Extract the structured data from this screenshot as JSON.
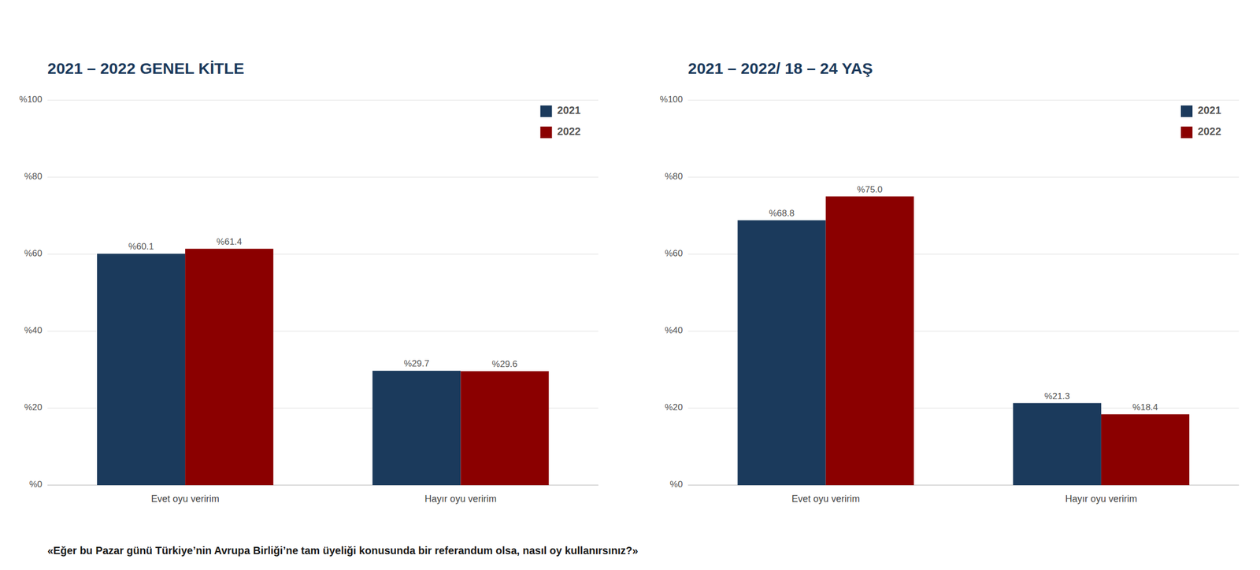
{
  "chart_data": [
    {
      "type": "bar",
      "title": "2021 – 2022 GENEL KİTLE",
      "categories": [
        "Evet oyu veririm",
        "Hayır oyu veririm"
      ],
      "series": [
        {
          "name": "2021",
          "color": "#1b3a5c",
          "values": [
            60.1,
            29.7
          ],
          "value_labels": [
            "%60.1",
            "%29.7"
          ]
        },
        {
          "name": "2022",
          "color": "#8b0000",
          "values": [
            61.4,
            29.6
          ],
          "value_labels": [
            "%61.4",
            "%29.6"
          ]
        }
      ],
      "ylim": [
        0,
        100
      ],
      "yticks": [
        {
          "value": 0,
          "label": "%0"
        },
        {
          "value": 20,
          "label": "%20"
        },
        {
          "value": 40,
          "label": "%40"
        },
        {
          "value": 60,
          "label": "%60"
        },
        {
          "value": 80,
          "label": "%80"
        },
        {
          "value": 100,
          "label": "%100"
        }
      ],
      "grid": true,
      "legend": "upper right",
      "data_labels": true
    },
    {
      "type": "bar",
      "title": "2021 – 2022/ 18 – 24 YAŞ",
      "categories": [
        "Evet oyu veririm",
        "Hayır oyu veririm"
      ],
      "series": [
        {
          "name": "2021",
          "color": "#1b3a5c",
          "values": [
            68.8,
            21.3
          ],
          "value_labels": [
            "%68.8",
            "%21.3"
          ]
        },
        {
          "name": "2022",
          "color": "#8b0000",
          "values": [
            75.0,
            18.4
          ],
          "value_labels": [
            "%75.0",
            "%18.4"
          ]
        }
      ],
      "ylim": [
        0,
        100
      ],
      "yticks": [
        {
          "value": 0,
          "label": "%0"
        },
        {
          "value": 20,
          "label": "%20"
        },
        {
          "value": 40,
          "label": "%40"
        },
        {
          "value": 60,
          "label": "%60"
        },
        {
          "value": 80,
          "label": "%80"
        },
        {
          "value": 100,
          "label": "%100"
        }
      ],
      "grid": true,
      "legend": "upper right",
      "data_labels": true
    }
  ],
  "footer": "«Eğer bu Pazar günü Türkiye’nin Avrupa Birliği’ne tam üyeliği konusunda bir referandum olsa, nasıl oy kullanırsınız?»"
}
